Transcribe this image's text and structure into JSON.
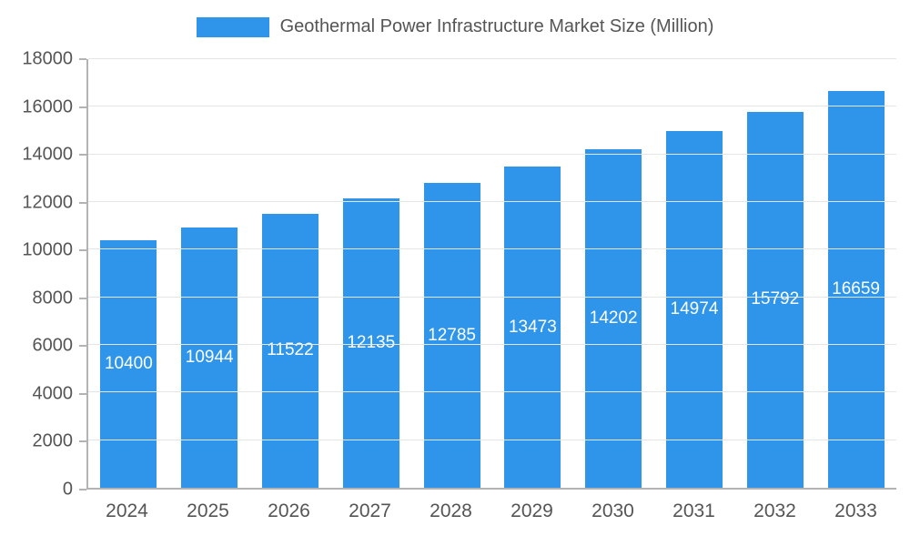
{
  "chart_data": {
    "type": "bar",
    "title": "Geothermal Power Infrastructure Market Size (Million)",
    "categories": [
      "2024",
      "2025",
      "2026",
      "2027",
      "2028",
      "2029",
      "2030",
      "2031",
      "2032",
      "2033"
    ],
    "values": [
      10400,
      10944,
      11522,
      12135,
      12785,
      13473,
      14202,
      14974,
      15792,
      16659
    ],
    "xlabel": "",
    "ylabel": "",
    "ylim": [
      0,
      18000
    ],
    "ytick_step": 2000,
    "grid": true,
    "legend_position": "top-center",
    "bar_color": "#2E95EA",
    "bar_label_color": "#ffffff",
    "axis_text_color": "#555555",
    "gridline_color": "#e5e5e5",
    "axis_line_color": "#b3b3b3"
  }
}
